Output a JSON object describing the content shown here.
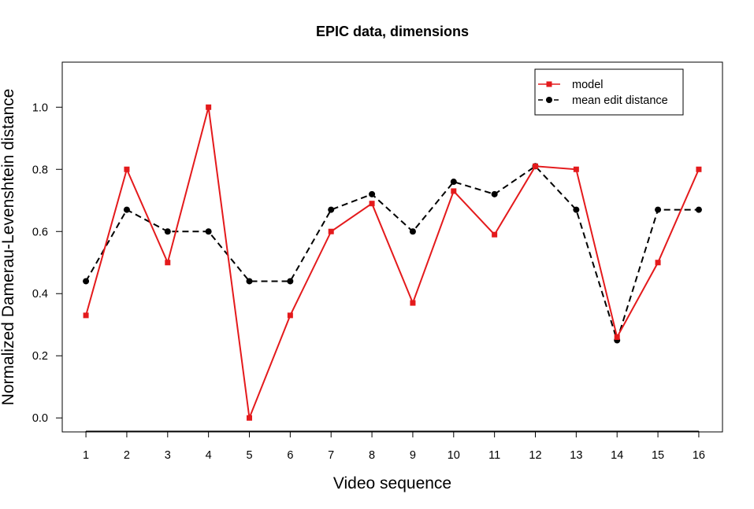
{
  "chart_data": {
    "type": "line",
    "title": "EPIC data, dimensions",
    "xlabel": "Video sequence",
    "ylabel": "Normalized Damerau-Levenshtein distance",
    "x": [
      1,
      2,
      3,
      4,
      5,
      6,
      7,
      8,
      9,
      10,
      11,
      12,
      13,
      14,
      15,
      16
    ],
    "xlim": [
      0.42,
      16.58
    ],
    "ylim": [
      -0.045,
      1.145
    ],
    "yticks": [
      0.0,
      0.2,
      0.4,
      0.6,
      0.8,
      1.0
    ],
    "ytick_labels": [
      "0.0",
      "0.2",
      "0.4",
      "0.6",
      "0.8",
      "1.0"
    ],
    "grid": false,
    "legend_position": "top-right",
    "series": [
      {
        "name": "model",
        "color": "#e41a1c",
        "line_style": "solid",
        "marker": "square",
        "values": [
          0.33,
          0.8,
          0.5,
          1.0,
          0.0,
          0.33,
          0.6,
          0.69,
          0.37,
          0.73,
          0.59,
          0.81,
          0.8,
          0.26,
          0.5,
          0.8
        ]
      },
      {
        "name": "mean edit distance",
        "color": "#000000",
        "line_style": "dashed",
        "marker": "circle",
        "values": [
          0.44,
          0.67,
          0.6,
          0.6,
          0.44,
          0.44,
          0.67,
          0.72,
          0.6,
          0.76,
          0.72,
          0.81,
          0.67,
          0.25,
          0.67,
          0.67
        ]
      }
    ]
  }
}
